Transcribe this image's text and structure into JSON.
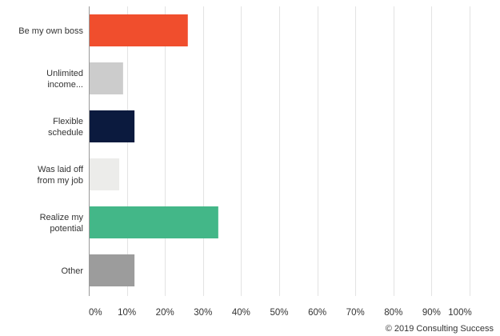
{
  "chart_data": {
    "type": "bar",
    "orientation": "horizontal",
    "categories": [
      [
        "Be my own boss"
      ],
      [
        "Unlimited",
        "income..."
      ],
      [
        "Flexible",
        "schedule"
      ],
      [
        "Was laid off",
        "from my job"
      ],
      [
        "Realize my",
        "potential"
      ],
      [
        "Other"
      ]
    ],
    "values": [
      26,
      9,
      12,
      8,
      34,
      12
    ],
    "bar_colors": [
      "#f04e2d",
      "#cccccc",
      "#0b1a3e",
      "#ececea",
      "#43b788",
      "#9c9c9c"
    ],
    "xlim": [
      0,
      100
    ],
    "ticks": [
      "0%",
      "10%",
      "20%",
      "30%",
      "40%",
      "50%",
      "60%",
      "70%",
      "80%",
      "90%",
      "100%"
    ],
    "grid": true,
    "grid_color": "#e3e3e3",
    "axis_color": "#999999"
  },
  "footer": {
    "credit": "© 2019 Consulting Success"
  }
}
